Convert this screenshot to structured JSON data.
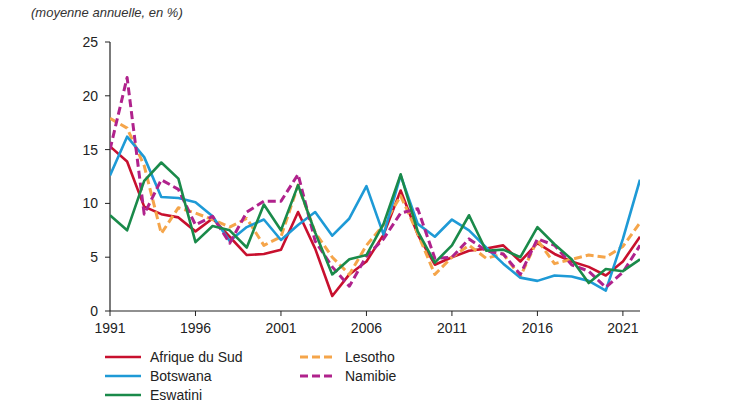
{
  "chart_data": {
    "type": "line",
    "subtitle": "(moyenne annuelle, en %)",
    "x": [
      1991,
      1992,
      1993,
      1994,
      1995,
      1996,
      1997,
      1998,
      1999,
      2000,
      2001,
      2002,
      2003,
      2004,
      2005,
      2006,
      2007,
      2008,
      2009,
      2010,
      2011,
      2012,
      2013,
      2014,
      2015,
      2016,
      2017,
      2018,
      2019,
      2020,
      2021,
      2022
    ],
    "xlim": [
      1991,
      2022
    ],
    "xticks": [
      1991,
      1996,
      2001,
      2006,
      2011,
      2016,
      2021
    ],
    "ylim": [
      0,
      25
    ],
    "yticks": [
      0,
      5,
      10,
      15,
      20,
      25
    ],
    "grid": false,
    "legend": "bottom",
    "series": [
      {
        "name": "Afrique du Sud",
        "color": "#c8102e",
        "line_style": "solid",
        "values": [
          15.3,
          13.9,
          9.7,
          9.0,
          8.7,
          7.4,
          8.6,
          6.9,
          5.2,
          5.3,
          5.7,
          9.2,
          5.8,
          1.4,
          3.4,
          4.6,
          7.1,
          11.2,
          7.1,
          4.3,
          5.0,
          5.6,
          5.8,
          6.1,
          4.6,
          6.3,
          5.3,
          4.6,
          4.1,
          3.3,
          4.6,
          6.9
        ]
      },
      {
        "name": "Lesotho",
        "color": "#f5a54a",
        "line_style": "dashed",
        "values": [
          17.9,
          17.0,
          13.5,
          7.2,
          9.6,
          9.1,
          8.5,
          7.8,
          8.6,
          6.1,
          6.9,
          11.7,
          7.3,
          5.0,
          3.4,
          6.1,
          8.0,
          10.7,
          7.2,
          3.4,
          5.0,
          6.1,
          4.9,
          5.3,
          3.2,
          6.6,
          4.4,
          4.8,
          5.2,
          5.0,
          6.0,
          8.2
        ]
      },
      {
        "name": "Botswana",
        "color": "#1e9ad6",
        "line_style": "solid",
        "values": [
          12.6,
          16.2,
          14.3,
          10.6,
          10.5,
          10.1,
          8.8,
          6.5,
          7.8,
          8.5,
          6.6,
          8.0,
          9.2,
          7.0,
          8.6,
          11.6,
          7.1,
          12.6,
          8.1,
          6.9,
          8.5,
          7.5,
          5.9,
          4.4,
          3.1,
          2.8,
          3.3,
          3.2,
          2.8,
          1.9,
          6.7,
          12.2
        ]
      },
      {
        "name": "Namibie",
        "color": "#b0228c",
        "line_style": "dashed",
        "values": [
          15.0,
          21.7,
          9.0,
          12.2,
          11.3,
          8.0,
          8.8,
          6.3,
          9.2,
          10.2,
          10.2,
          12.7,
          6.5,
          4.1,
          2.3,
          5.1,
          6.7,
          9.1,
          9.5,
          4.9,
          5.0,
          6.7,
          5.6,
          5.3,
          3.4,
          6.7,
          6.1,
          4.3,
          3.7,
          2.2,
          3.6,
          6.1
        ]
      },
      {
        "name": "Eswatini",
        "color": "#1a8a4a",
        "line_style": "solid",
        "values": [
          8.9,
          7.5,
          12.1,
          13.8,
          12.3,
          6.4,
          7.9,
          7.5,
          5.9,
          9.9,
          7.5,
          11.7,
          7.3,
          3.4,
          4.8,
          5.2,
          8.1,
          12.7,
          7.4,
          4.5,
          6.1,
          8.9,
          5.6,
          5.7,
          5.0,
          7.8,
          6.2,
          4.8,
          2.6,
          3.9,
          3.7,
          4.8
        ]
      }
    ]
  }
}
